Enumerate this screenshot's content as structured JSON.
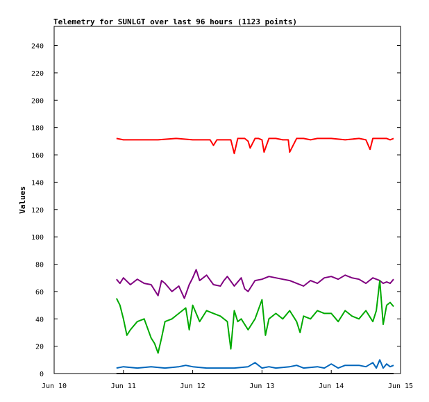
{
  "chart_data": {
    "type": "line",
    "title": "Telemetry for SUNLGT over last 96 hours (1123 points)",
    "xlabel": "",
    "ylabel": "Values",
    "xlim": [
      0,
      5
    ],
    "ylim": [
      0,
      254
    ],
    "x_ticks": [
      {
        "value": 0,
        "label": "Jun 10"
      },
      {
        "value": 1,
        "label": "Jun 11"
      },
      {
        "value": 2,
        "label": "Jun 12"
      },
      {
        "value": 3,
        "label": "Jun 13"
      },
      {
        "value": 4,
        "label": "Jun 14"
      },
      {
        "value": 5,
        "label": "Jun 15"
      }
    ],
    "y_ticks": [
      0,
      20,
      40,
      60,
      80,
      100,
      120,
      140,
      160,
      180,
      200,
      220,
      240
    ],
    "grid": false,
    "series": [
      {
        "color": "#ff0000",
        "x": [
          0.9,
          1.0,
          1.5,
          1.76,
          2.0,
          2.25,
          2.3,
          2.35,
          2.5,
          2.55,
          2.6,
          2.65,
          2.7,
          2.75,
          2.8,
          2.83,
          2.9,
          2.95,
          3.0,
          3.03,
          3.1,
          3.2,
          3.3,
          3.38,
          3.4,
          3.5,
          3.6,
          3.7,
          3.8,
          3.9,
          4.0,
          4.2,
          4.4,
          4.5,
          4.56,
          4.6,
          4.7,
          4.8,
          4.85,
          4.9
        ],
        "y": [
          172,
          171,
          171,
          172,
          171,
          171,
          167,
          171,
          171,
          171,
          161,
          172,
          172,
          172,
          170,
          165,
          172,
          172,
          171,
          162,
          172,
          172,
          171,
          171,
          162,
          172,
          172,
          171,
          172,
          172,
          172,
          171,
          172,
          171,
          164,
          172,
          172,
          172,
          171,
          172
        ]
      },
      {
        "color": "#800080",
        "x": [
          0.9,
          0.95,
          1.0,
          1.1,
          1.2,
          1.3,
          1.4,
          1.5,
          1.55,
          1.6,
          1.7,
          1.8,
          1.88,
          1.95,
          2.0,
          2.05,
          2.1,
          2.2,
          2.3,
          2.4,
          2.45,
          2.5,
          2.6,
          2.7,
          2.75,
          2.8,
          2.9,
          3.0,
          3.1,
          3.2,
          3.3,
          3.4,
          3.5,
          3.6,
          3.7,
          3.8,
          3.9,
          4.0,
          4.1,
          4.2,
          4.3,
          4.4,
          4.5,
          4.6,
          4.7,
          4.75,
          4.8,
          4.85,
          4.9
        ],
        "y": [
          69,
          66,
          70,
          65,
          69,
          66,
          65,
          57,
          68,
          66,
          60,
          64,
          55,
          65,
          70,
          76,
          68,
          72,
          65,
          64,
          68,
          71,
          64,
          70,
          62,
          60,
          68,
          69,
          71,
          70,
          69,
          68,
          66,
          64,
          68,
          66,
          70,
          71,
          69,
          72,
          70,
          69,
          66,
          70,
          68,
          66,
          67,
          66,
          69
        ]
      },
      {
        "color": "#00aa00",
        "x": [
          0.9,
          0.95,
          1.0,
          1.05,
          1.1,
          1.2,
          1.3,
          1.4,
          1.45,
          1.5,
          1.55,
          1.6,
          1.7,
          1.8,
          1.9,
          1.95,
          2.0,
          2.1,
          2.2,
          2.3,
          2.4,
          2.5,
          2.55,
          2.6,
          2.65,
          2.7,
          2.8,
          2.9,
          3.0,
          3.05,
          3.1,
          3.2,
          3.3,
          3.4,
          3.5,
          3.55,
          3.6,
          3.7,
          3.8,
          3.9,
          4.0,
          4.1,
          4.2,
          4.3,
          4.4,
          4.5,
          4.55,
          4.6,
          4.65,
          4.7,
          4.75,
          4.8,
          4.85,
          4.9
        ],
        "y": [
          55,
          50,
          40,
          28,
          32,
          38,
          40,
          26,
          22,
          15,
          26,
          38,
          40,
          44,
          48,
          32,
          50,
          38,
          46,
          44,
          42,
          38,
          18,
          46,
          38,
          40,
          32,
          40,
          54,
          28,
          40,
          44,
          40,
          46,
          38,
          30,
          42,
          40,
          46,
          44,
          44,
          38,
          46,
          42,
          40,
          46,
          42,
          38,
          46,
          68,
          36,
          50,
          52,
          49
        ]
      },
      {
        "color": "#0066bb",
        "x": [
          0.9,
          1.0,
          1.2,
          1.4,
          1.6,
          1.8,
          1.9,
          2.0,
          2.2,
          2.4,
          2.5,
          2.6,
          2.8,
          2.9,
          3.0,
          3.1,
          3.2,
          3.4,
          3.5,
          3.6,
          3.8,
          3.9,
          4.0,
          4.1,
          4.2,
          4.4,
          4.5,
          4.6,
          4.65,
          4.7,
          4.75,
          4.8,
          4.85,
          4.9
        ],
        "y": [
          4,
          5,
          4,
          5,
          4,
          5,
          6,
          5,
          4,
          4,
          4,
          4,
          5,
          8,
          4,
          5,
          4,
          5,
          6,
          4,
          5,
          4,
          7,
          4,
          6,
          6,
          5,
          8,
          4,
          10,
          4,
          7,
          5,
          6
        ]
      },
      {
        "color": "#000000",
        "x": [
          0.9,
          4.9
        ],
        "y": [
          0,
          0
        ]
      }
    ]
  }
}
